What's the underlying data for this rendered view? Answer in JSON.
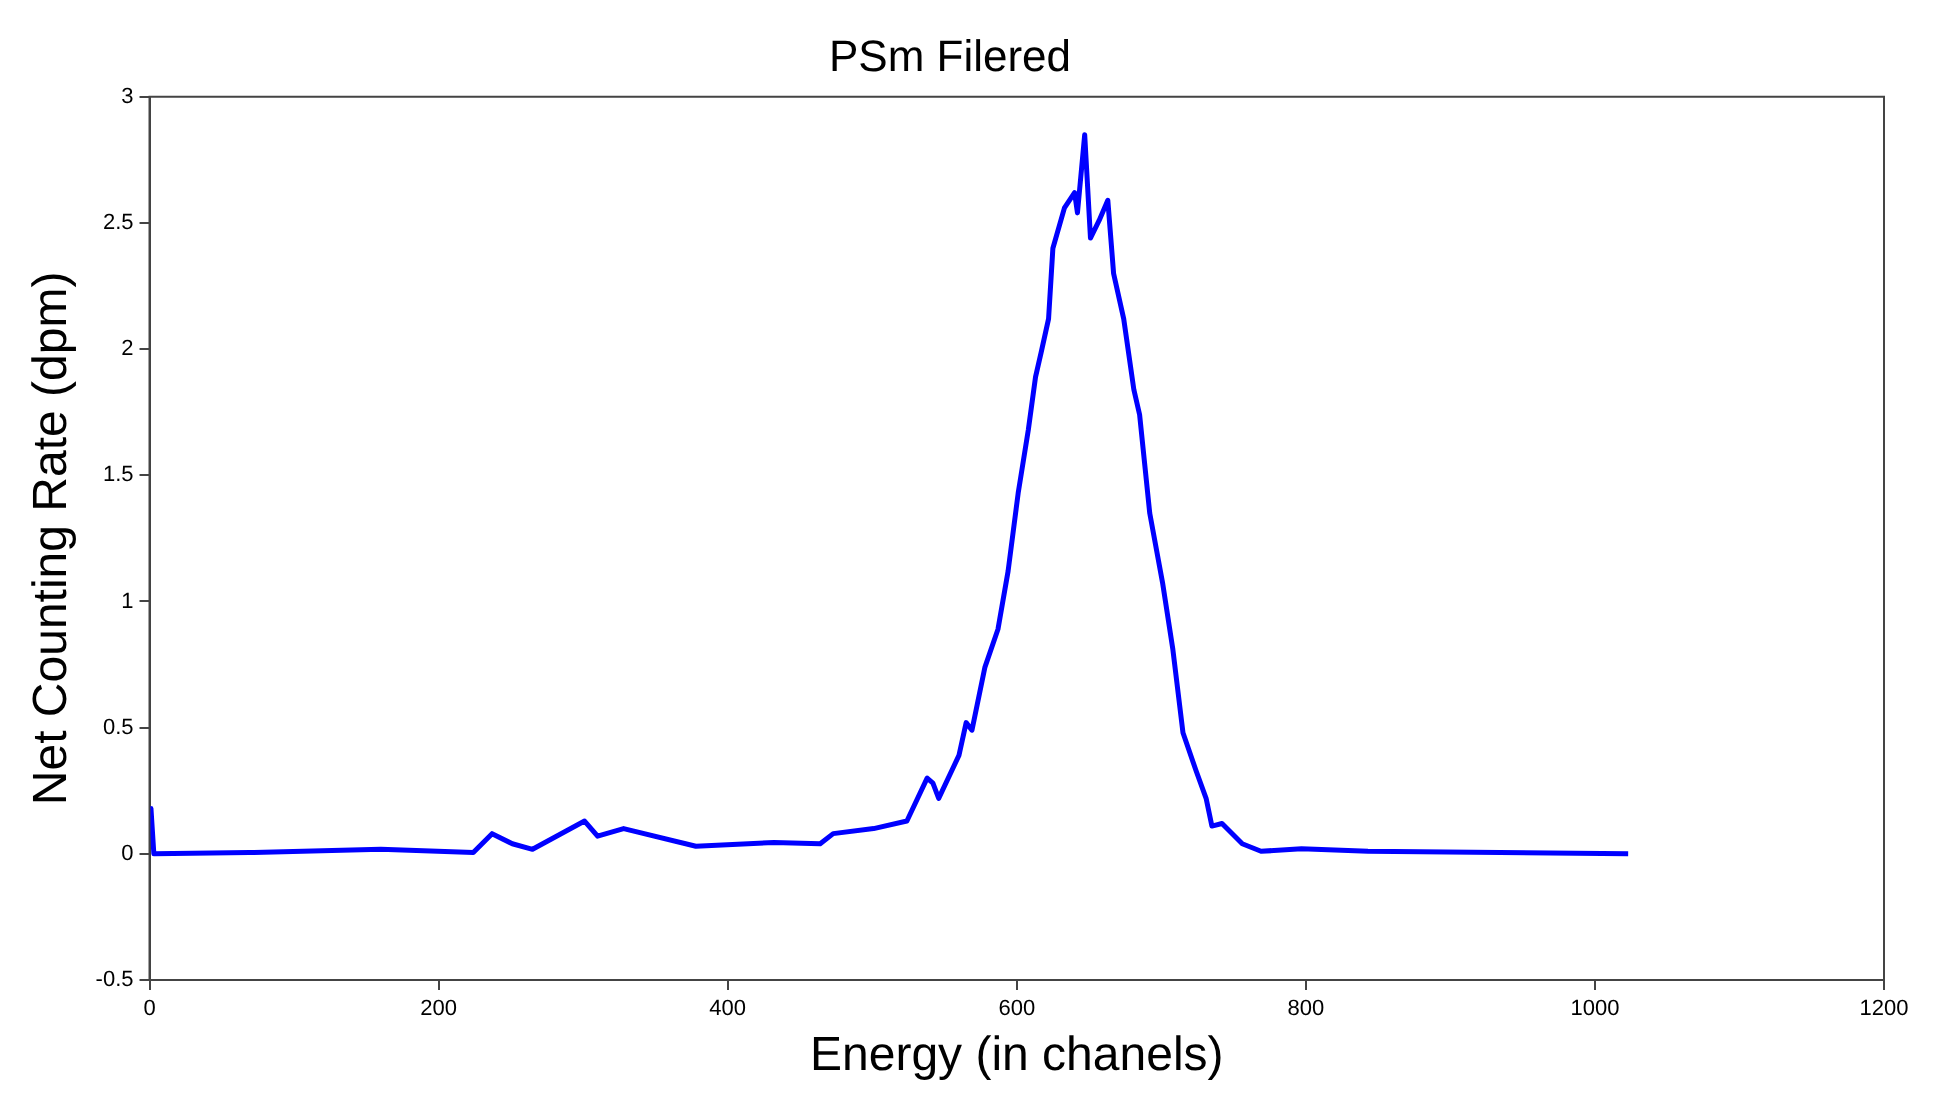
{
  "chart_data": {
    "type": "line",
    "title": "PSm Filered",
    "xlabel": "Energy (in chanels)",
    "ylabel": "Net Counting Rate (dpm)",
    "x": [
      0,
      1,
      3,
      69,
      160,
      224,
      237,
      251,
      265,
      301,
      310,
      328,
      378,
      432,
      464,
      473,
      501,
      524,
      538,
      542,
      546,
      560,
      565,
      569,
      578,
      587,
      594,
      601,
      608,
      613,
      617,
      622,
      625,
      633,
      640,
      642,
      647,
      651,
      657,
      663,
      667,
      674,
      681,
      685,
      692,
      701,
      708,
      715,
      724,
      731,
      735,
      742,
      756,
      769,
      797,
      843,
      1023
    ],
    "series": [
      {
        "color": "#0000ff",
        "values": [
          0.18,
          0.18,
          0,
          0.005,
          0.018,
          0.005,
          0.08,
          0.04,
          0.018,
          0.13,
          0.07,
          0.1,
          0.03,
          0.045,
          0.04,
          0.08,
          0.1,
          0.13,
          0.3,
          0.28,
          0.22,
          0.39,
          0.52,
          0.49,
          0.74,
          0.89,
          1.12,
          1.43,
          1.68,
          1.89,
          1.99,
          2.12,
          2.4,
          2.56,
          2.62,
          2.54,
          2.85,
          2.44,
          2.51,
          2.59,
          2.3,
          2.12,
          1.84,
          1.74,
          1.35,
          1.07,
          0.81,
          0.48,
          0.33,
          0.22,
          0.11,
          0.12,
          0.04,
          0.01,
          0.02,
          0.01,
          0
        ]
      }
    ],
    "xlim": [
      0,
      1200
    ],
    "xticks": [
      0,
      200,
      400,
      600,
      800,
      1000,
      1200
    ],
    "ylim": [
      -0.5,
      3
    ],
    "yticks": [
      -0.5,
      0,
      0.5,
      1,
      1.5,
      2,
      2.5,
      3
    ],
    "grid": false,
    "legend": false,
    "marker": "none",
    "line_style": "solid"
  }
}
